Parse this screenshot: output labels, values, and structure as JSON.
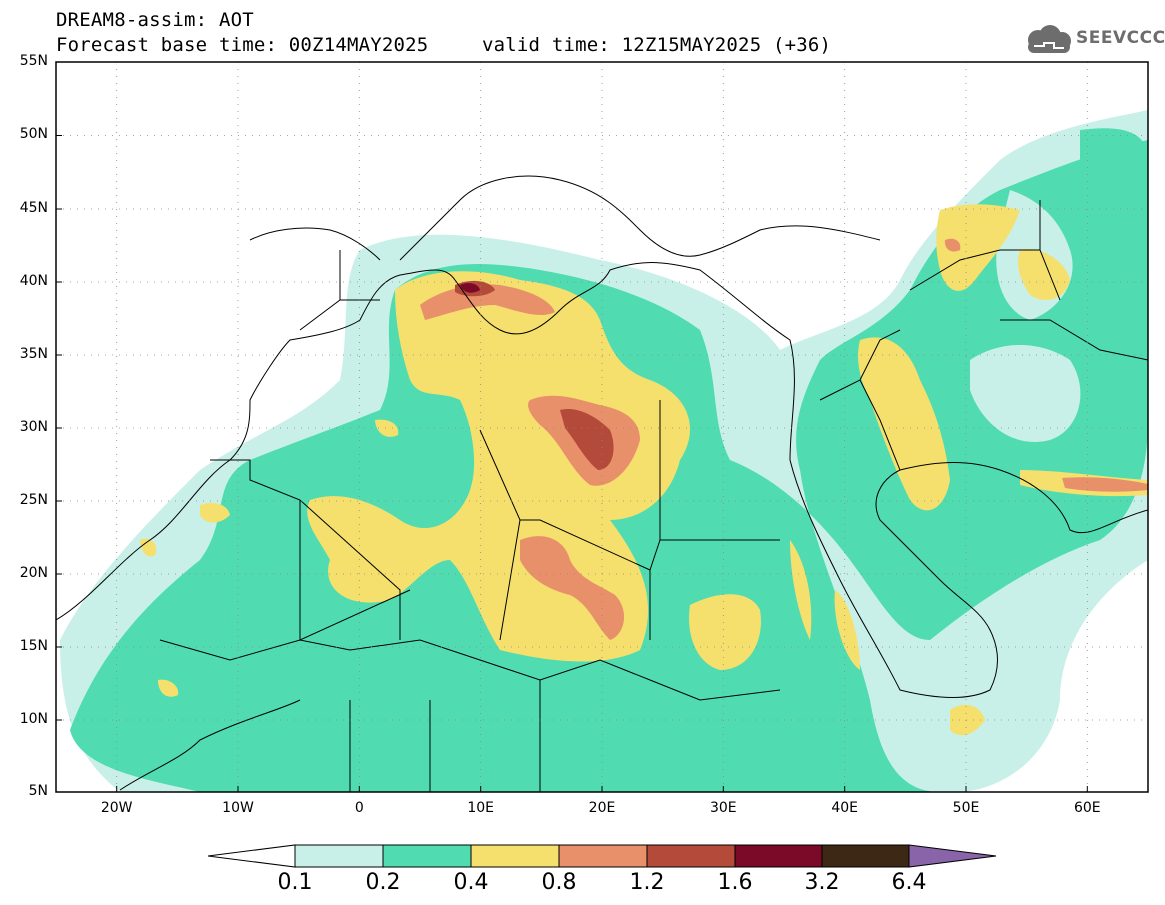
{
  "header": {
    "title": "DREAM8-assim: AOT",
    "base_time": "Forecast base time: 00Z14MAY2025",
    "valid_time": "valid time: 12Z15MAY2025 (+36)"
  },
  "logo": {
    "text": "SEEVCCC",
    "icon": "cloud-icon",
    "color": "#6d6d6d"
  },
  "axes": {
    "lat_labels": [
      "55N",
      "50N",
      "45N",
      "40N",
      "35N",
      "30N",
      "25N",
      "20N",
      "15N",
      "10N",
      "5N"
    ],
    "lon_labels": [
      "20W",
      "10W",
      "0",
      "10E",
      "20E",
      "30E",
      "40E",
      "50E",
      "60E"
    ],
    "lat_range": [
      5,
      55
    ],
    "lon_range": [
      -25,
      65
    ],
    "grid": "dotted"
  },
  "colorbar": {
    "labels": [
      "0.1",
      "0.2",
      "0.4",
      "0.8",
      "1.2",
      "1.6",
      "3.2",
      "6.4"
    ],
    "colors": [
      "#ffffff",
      "#c8f0e8",
      "#50dcb0",
      "#f5e06e",
      "#e8906a",
      "#b44a3a",
      "#7a0a28",
      "#3c2814",
      "#8a64a8"
    ]
  },
  "layers": {
    "land_color": "#ffffff",
    "aot_colors": [
      "#c8f0e8",
      "#50dcb0",
      "#f5e06e",
      "#e8906a",
      "#b44a3a",
      "#7a0a28"
    ]
  }
}
